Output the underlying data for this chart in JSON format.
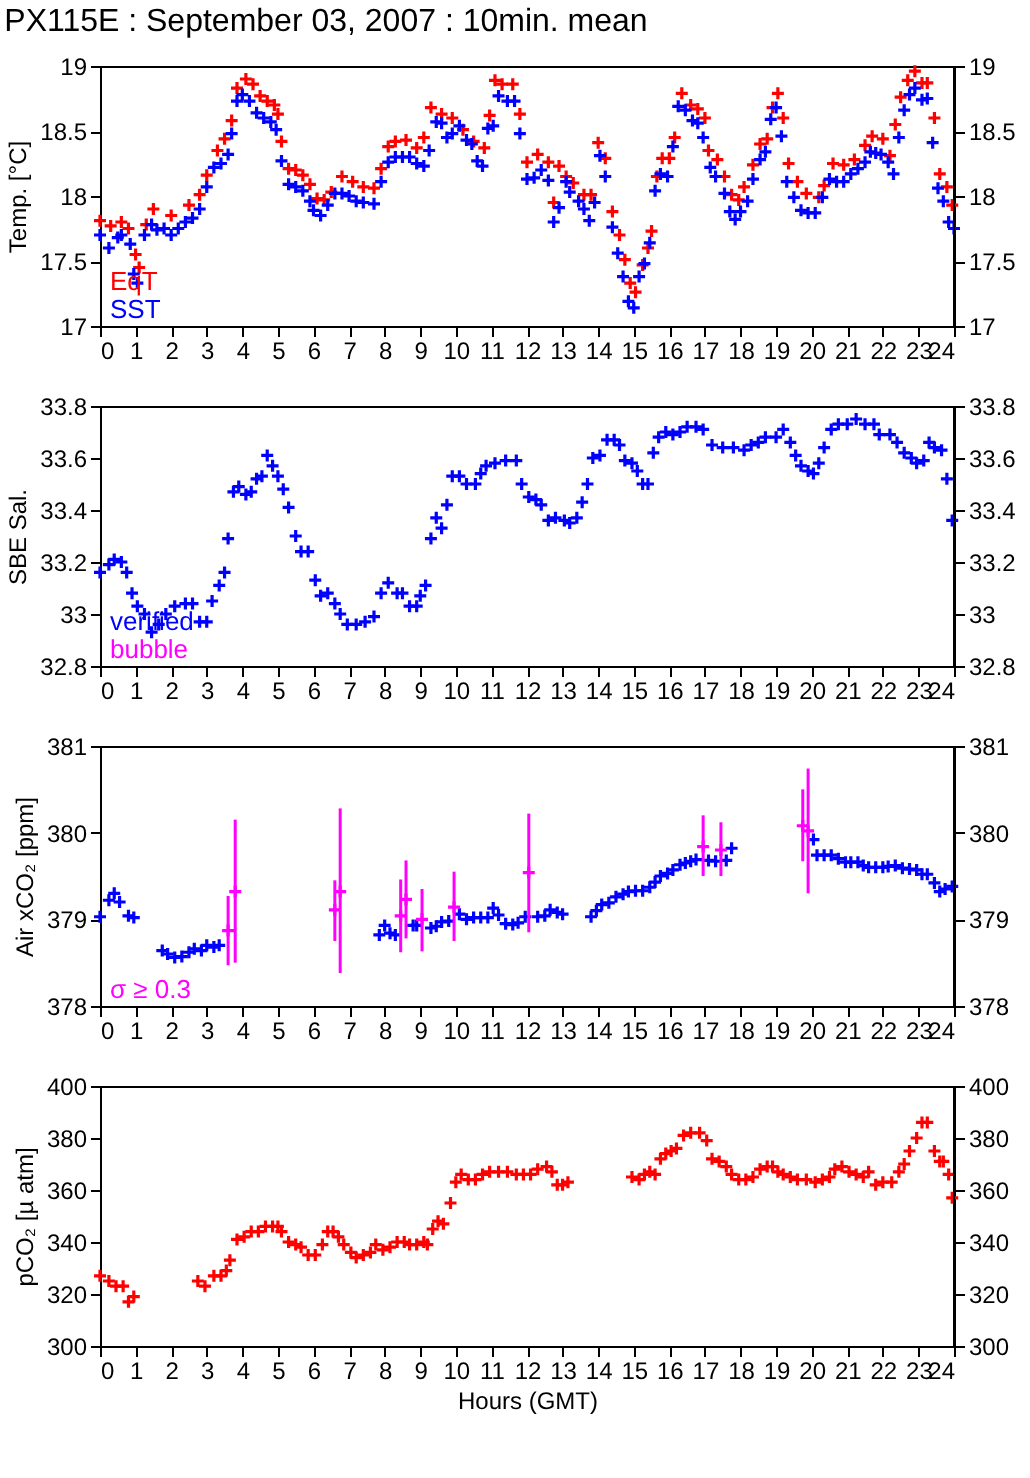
{
  "chart_data": [
    {
      "type": "scatter",
      "title": "PX115E : September 03, 2007 : 10min. mean",
      "ylabel": "Temp. [°C]",
      "xlim": [
        0,
        24
      ],
      "xticks": [
        0,
        1,
        2,
        3,
        4,
        5,
        6,
        7,
        8,
        9,
        10,
        11,
        12,
        13,
        14,
        15,
        16,
        17,
        18,
        19,
        20,
        21,
        22,
        23,
        24
      ],
      "ylim": [
        17,
        19
      ],
      "yticks": [
        17,
        17.5,
        18,
        18.5,
        19
      ],
      "y2lim": [
        17,
        19
      ],
      "y2ticks": [
        17,
        17.5,
        18,
        18.5,
        19
      ],
      "grid": false,
      "marker": "cross",
      "legend": "bottom left",
      "series": [
        {
          "name": "EqT",
          "color": "#ff0000",
          "x": [
            0,
            0.3,
            0.6,
            0.8,
            1,
            1.1,
            1.3,
            1.5,
            2,
            2.5,
            2.8,
            3,
            3.3,
            3.5,
            3.7,
            3.85,
            4.1,
            4.3,
            4.5,
            4.7,
            4.9,
            5,
            5.1,
            5.3,
            5.5,
            5.7,
            5.9,
            6.1,
            6.3,
            6.5,
            6.8,
            7.1,
            7.4,
            7.7,
            7.9,
            8.1,
            8.3,
            8.6,
            8.9,
            9.1,
            9.3,
            9.6,
            9.9,
            10.2,
            10.5,
            10.8,
            10.95,
            11.1,
            11.3,
            11.6,
            11.8,
            12,
            12.3,
            12.6,
            12.75,
            12.9,
            13.1,
            13.3,
            13.6,
            13.8,
            14,
            14.2,
            14.4,
            14.6,
            14.75,
            14.9,
            15.05,
            15.25,
            15.4,
            15.5,
            15.65,
            15.8,
            16,
            16.15,
            16.35,
            16.6,
            16.8,
            17,
            17.1,
            17.35,
            17.55,
            17.75,
            17.95,
            18.1,
            18.35,
            18.55,
            18.75,
            18.9,
            19.05,
            19.2,
            19.35,
            19.6,
            19.85,
            20.2,
            20.35,
            20.6,
            20.9,
            21.2,
            21.5,
            21.7,
            22,
            22.2,
            22.35,
            22.5,
            22.7,
            22.9,
            23.1,
            23.25,
            23.45,
            23.6,
            23.8,
            23.95
          ],
          "values": [
            17.81,
            17.77,
            17.8,
            17.75,
            17.55,
            17.45,
            17.78,
            17.9,
            17.85,
            17.93,
            18.01,
            18.16,
            18.35,
            18.44,
            18.58,
            18.83,
            18.9,
            18.86,
            18.77,
            18.73,
            18.7,
            18.63,
            18.42,
            18.21,
            18.2,
            18.16,
            18.09,
            17.98,
            17.97,
            18.03,
            18.15,
            18.11,
            18.07,
            18.06,
            18.21,
            18.38,
            18.42,
            18.43,
            18.37,
            18.45,
            18.68,
            18.63,
            18.6,
            18.51,
            18.42,
            18.37,
            18.62,
            18.89,
            18.86,
            18.86,
            18.63,
            18.26,
            18.32,
            18.26,
            17.95,
            18.23,
            18.15,
            18.1,
            18.01,
            18.01,
            18.41,
            18.29,
            17.88,
            17.7,
            17.51,
            17.33,
            17.26,
            17.47,
            17.6,
            17.73,
            18.15,
            18.29,
            18.29,
            18.45,
            18.79,
            18.7,
            18.67,
            18.6,
            18.35,
            18.28,
            18.15,
            18.01,
            17.97,
            18.07,
            18.24,
            18.4,
            18.44,
            18.68,
            18.79,
            18.6,
            18.25,
            18.11,
            18.02,
            17.99,
            18.08,
            18.25,
            18.24,
            18.28,
            18.39,
            18.46,
            18.44,
            18.31,
            18.55,
            18.76,
            18.89,
            18.96,
            18.87,
            18.87,
            18.6,
            18.17,
            18.07,
            17.93
          ]
        },
        {
          "name": "SST",
          "color": "#0000ff",
          "x": [
            0,
            0.25,
            0.5,
            0.6,
            0.85,
            0.95,
            1.05,
            1.25,
            1.45,
            1.6,
            1.8,
            2,
            2.2,
            2.4,
            2.6,
            2.8,
            3,
            3.2,
            3.4,
            3.6,
            3.7,
            3.85,
            4,
            4.2,
            4.4,
            4.6,
            4.8,
            4.95,
            5.1,
            5.3,
            5.5,
            5.7,
            5.9,
            6,
            6.2,
            6.4,
            6.6,
            6.8,
            7,
            7.2,
            7.4,
            7.7,
            7.9,
            8.1,
            8.3,
            8.5,
            8.7,
            8.9,
            9.1,
            9.25,
            9.45,
            9.6,
            9.75,
            9.9,
            10.1,
            10.3,
            10.45,
            10.6,
            10.75,
            10.9,
            11.05,
            11.2,
            11.45,
            11.65,
            11.8,
            12,
            12.2,
            12.4,
            12.6,
            12.75,
            12.9,
            13.1,
            13.2,
            13.45,
            13.6,
            13.75,
            13.9,
            14.05,
            14.2,
            14.4,
            14.55,
            14.7,
            14.85,
            15,
            15.15,
            15.3,
            15.45,
            15.6,
            15.75,
            15.95,
            16.1,
            16.25,
            16.45,
            16.65,
            16.8,
            16.95,
            17.15,
            17.3,
            17.55,
            17.7,
            17.85,
            18,
            18.2,
            18.35,
            18.55,
            18.7,
            18.85,
            19,
            19.15,
            19.3,
            19.5,
            19.7,
            19.9,
            20.1,
            20.3,
            20.5,
            20.7,
            20.9,
            21.1,
            21.3,
            21.5,
            21.65,
            21.8,
            21.95,
            22.15,
            22.3,
            22.45,
            22.6,
            22.75,
            22.9,
            23.1,
            23.25,
            23.4,
            23.55,
            23.7,
            23.85,
            24
          ],
          "values": [
            17.7,
            17.6,
            17.68,
            17.7,
            17.63,
            17.4,
            17.33,
            17.7,
            17.78,
            17.74,
            17.75,
            17.7,
            17.75,
            17.8,
            17.83,
            17.9,
            18.07,
            18.22,
            18.25,
            18.32,
            18.48,
            18.73,
            18.78,
            18.73,
            18.64,
            18.6,
            18.57,
            18.51,
            18.27,
            18.09,
            18.07,
            18.04,
            17.96,
            17.89,
            17.85,
            17.93,
            18.02,
            18.02,
            18,
            17.96,
            17.95,
            17.94,
            18.11,
            18.26,
            18.3,
            18.3,
            18.3,
            18.25,
            18.23,
            18.35,
            18.57,
            18.56,
            18.45,
            18.48,
            18.54,
            18.43,
            18.4,
            18.27,
            18.23,
            18.52,
            18.54,
            18.77,
            18.73,
            18.73,
            18.48,
            18.13,
            18.14,
            18.2,
            18.12,
            17.8,
            17.91,
            18.11,
            18.03,
            17.96,
            17.9,
            17.81,
            17.95,
            18.31,
            18.15,
            17.76,
            17.56,
            17.38,
            17.19,
            17.14,
            17.38,
            17.48,
            17.64,
            18.04,
            18.17,
            18.15,
            18.38,
            18.69,
            18.66,
            18.58,
            18.56,
            18.45,
            18.22,
            18.15,
            18.02,
            17.88,
            17.82,
            17.88,
            17.96,
            18.13,
            18.28,
            18.34,
            18.59,
            18.68,
            18.46,
            18.11,
            17.99,
            17.89,
            17.87,
            17.87,
            17.99,
            18.13,
            18.11,
            18.11,
            18.17,
            18.21,
            18.26,
            18.34,
            18.33,
            18.32,
            18.26,
            18.17,
            18.45,
            18.66,
            18.78,
            18.83,
            18.74,
            18.75,
            18.41,
            18.06,
            17.96,
            17.8,
            17.75
          ]
        }
      ]
    },
    {
      "type": "scatter",
      "ylabel": "SBE Sal.",
      "xlim": [
        0,
        24
      ],
      "xticks": [
        0,
        1,
        2,
        3,
        4,
        5,
        6,
        7,
        8,
        9,
        10,
        11,
        12,
        13,
        14,
        15,
        16,
        17,
        18,
        19,
        20,
        21,
        22,
        23,
        24
      ],
      "ylim": [
        32.8,
        33.8
      ],
      "yticks": [
        32.8,
        33,
        33.2,
        33.4,
        33.6,
        33.8
      ],
      "y2lim": [
        32.8,
        33.8
      ],
      "y2ticks": [
        32.8,
        33,
        33.2,
        33.4,
        33.6,
        33.8
      ],
      "grid": false,
      "marker": "cross",
      "legend": "bottom left",
      "series": [
        {
          "name": "verified",
          "color": "#0000ff",
          "x": [
            0,
            0.25,
            0.4,
            0.6,
            0.75,
            0.9,
            1.05,
            1.25,
            1.45,
            1.65,
            1.85,
            2.1,
            2.4,
            2.6,
            2.8,
            3,
            3.15,
            3.35,
            3.5,
            3.6,
            3.75,
            3.9,
            4.1,
            4.25,
            4.4,
            4.55,
            4.7,
            4.85,
            5,
            5.15,
            5.3,
            5.5,
            5.65,
            5.85,
            6.05,
            6.2,
            6.4,
            6.6,
            6.75,
            6.95,
            7.2,
            7.45,
            7.7,
            7.9,
            8.1,
            8.35,
            8.5,
            8.7,
            8.9,
            9,
            9.15,
            9.3,
            9.45,
            9.6,
            9.75,
            9.9,
            10.1,
            10.3,
            10.55,
            10.7,
            10.85,
            11.1,
            11.4,
            11.7,
            11.85,
            12.05,
            12.25,
            12.4,
            12.6,
            12.8,
            13.05,
            13.2,
            13.4,
            13.55,
            13.7,
            13.85,
            14.05,
            14.25,
            14.45,
            14.6,
            14.75,
            14.95,
            15.1,
            15.25,
            15.4,
            15.55,
            15.7,
            15.9,
            16.1,
            16.3,
            16.5,
            16.75,
            16.95,
            17.2,
            17.5,
            17.8,
            18.1,
            18.3,
            18.5,
            18.7,
            19,
            19.2,
            19.4,
            19.55,
            19.7,
            19.9,
            20.05,
            20.2,
            20.35,
            20.55,
            20.75,
            21,
            21.25,
            21.5,
            21.75,
            21.9,
            22.2,
            22.4,
            22.6,
            22.8,
            22.95,
            23.15,
            23.3,
            23.45,
            23.65,
            23.8,
            23.95
          ],
          "values": [
            33.16,
            33.19,
            33.21,
            33.2,
            33.16,
            33.08,
            33.03,
            33,
            32.93,
            32.96,
            33,
            33.03,
            33.04,
            33.04,
            32.97,
            32.97,
            33.05,
            33.11,
            33.16,
            33.29,
            33.47,
            33.49,
            33.46,
            33.47,
            33.52,
            33.53,
            33.61,
            33.57,
            33.53,
            33.48,
            33.41,
            33.3,
            33.24,
            33.24,
            33.13,
            33.07,
            33.08,
            33.04,
            33,
            32.96,
            32.96,
            32.97,
            32.99,
            33.08,
            33.12,
            33.08,
            33.08,
            33.03,
            33.03,
            33.07,
            33.11,
            33.29,
            33.37,
            33.33,
            33.42,
            33.53,
            33.53,
            33.5,
            33.5,
            33.54,
            33.57,
            33.58,
            33.59,
            33.59,
            33.5,
            33.45,
            33.44,
            33.42,
            33.36,
            33.37,
            33.36,
            33.35,
            33.37,
            33.43,
            33.5,
            33.6,
            33.61,
            33.67,
            33.67,
            33.65,
            33.59,
            33.58,
            33.55,
            33.5,
            33.5,
            33.62,
            33.68,
            33.7,
            33.69,
            33.7,
            33.72,
            33.72,
            33.71,
            33.65,
            33.64,
            33.64,
            33.63,
            33.65,
            33.66,
            33.68,
            33.68,
            33.71,
            33.66,
            33.61,
            33.57,
            33.55,
            33.54,
            33.58,
            33.64,
            33.71,
            33.73,
            33.73,
            33.75,
            33.73,
            33.73,
            33.69,
            33.69,
            33.66,
            33.62,
            33.6,
            33.58,
            33.59,
            33.66,
            33.64,
            33.63,
            33.52,
            33.36
          ]
        },
        {
          "name": "bubble",
          "color": "#ff00ff"
        }
      ]
    },
    {
      "type": "scatter",
      "ylabel": "Air xCO₂ [ppm]",
      "xlim": [
        0,
        24
      ],
      "xticks": [
        0,
        1,
        2,
        3,
        4,
        5,
        6,
        7,
        8,
        9,
        10,
        11,
        12,
        13,
        14,
        15,
        16,
        17,
        18,
        19,
        20,
        21,
        22,
        23,
        24
      ],
      "ylim": [
        378,
        381
      ],
      "yticks": [
        378,
        379,
        380,
        381
      ],
      "y2lim": [
        378,
        381
      ],
      "y2ticks": [
        378,
        379,
        380,
        381
      ],
      "grid": false,
      "marker": "cross",
      "legend": "bottom left",
      "series": [
        {
          "color": "#0000ff",
          "x": [
            0,
            0.25,
            0.4,
            0.55,
            0.8,
            0.95,
            1.75,
            1.9,
            2.1,
            2.3,
            2.5,
            2.65,
            2.85,
            3,
            3.2,
            3.35,
            7.85,
            8,
            8.15,
            8.3,
            8.8,
            8.9,
            9.3,
            9.45,
            9.6,
            9.8,
            10.1,
            10.3,
            10.5,
            10.7,
            10.9,
            11.05,
            11.2,
            11.4,
            11.6,
            11.75,
            11.95,
            12.3,
            12.5,
            12.65,
            12.85,
            13,
            13.8,
            13.95,
            14.1,
            14.3,
            14.5,
            14.7,
            14.85,
            15.05,
            15.25,
            15.45,
            15.6,
            15.75,
            15.95,
            16.1,
            16.3,
            16.45,
            16.6,
            16.75,
            17.1,
            17.3,
            17.6,
            17.75,
            20.05,
            20.15,
            20.35,
            20.55,
            20.75,
            20.95,
            21.1,
            21.3,
            21.45,
            21.6,
            21.8,
            22,
            22.15,
            22.35,
            22.55,
            22.75,
            22.95,
            23.1,
            23.25,
            23.45,
            23.6,
            23.75,
            23.95
          ],
          "values": [
            379.03,
            379.22,
            379.3,
            379.2,
            379.04,
            379.02,
            378.64,
            378.6,
            378.56,
            378.57,
            378.62,
            378.66,
            378.64,
            378.7,
            378.68,
            378.7,
            378.82,
            378.93,
            378.84,
            378.82,
            378.93,
            378.93,
            378.9,
            378.92,
            378.97,
            378.98,
            379.06,
            379,
            379.02,
            379.02,
            379.02,
            379.13,
            379.05,
            378.95,
            378.94,
            378.96,
            379.03,
            379.03,
            379.04,
            379.11,
            379.08,
            379.06,
            379.03,
            379.1,
            379.17,
            379.19,
            379.26,
            379.29,
            379.32,
            379.33,
            379.33,
            379.37,
            379.43,
            379.5,
            379.53,
            379.57,
            379.63,
            379.65,
            379.67,
            379.69,
            379.68,
            379.67,
            379.68,
            379.82,
            379.92,
            379.74,
            379.74,
            379.74,
            379.7,
            379.66,
            379.66,
            379.66,
            379.62,
            379.6,
            379.6,
            379.6,
            379.61,
            379.62,
            379.59,
            379.58,
            379.57,
            379.52,
            379.52,
            379.42,
            379.32,
            379.35,
            379.38
          ]
        },
        {
          "name": "σ ≥ 0.3",
          "color": "#ff00ff",
          "x": [
            3.6,
            3.8,
            6.6,
            6.75,
            8.45,
            8.6,
            9.05,
            9.95,
            12.05,
            16.95,
            17.45,
            19.75,
            19.9
          ],
          "values": [
            378.87,
            379.32,
            379.11,
            379.32,
            379.04,
            379.23,
            379,
            379.14,
            379.54,
            379.84,
            379.8,
            380.08,
            380.02
          ],
          "errors": [
            [
              378.47,
              379.27
            ],
            [
              378.5,
              380.15
            ],
            [
              378.75,
              379.45
            ],
            [
              378.38,
              380.28
            ],
            [
              378.62,
              379.46
            ],
            [
              378.78,
              379.68
            ],
            [
              378.63,
              379.35
            ],
            [
              378.75,
              379.55
            ],
            [
              378.85,
              380.22
            ],
            [
              379.5,
              380.2
            ],
            [
              379.5,
              380.12
            ],
            [
              379.67,
              380.5
            ],
            [
              379.3,
              380.74
            ]
          ]
        }
      ]
    },
    {
      "type": "scatter",
      "ylabel": "pCO₂ [µ atm]",
      "xlabel": "Hours (GMT)",
      "xlim": [
        0,
        24
      ],
      "xticks": [
        0,
        1,
        2,
        3,
        4,
        5,
        6,
        7,
        8,
        9,
        10,
        11,
        12,
        13,
        14,
        15,
        16,
        17,
        18,
        19,
        20,
        21,
        22,
        23,
        24
      ],
      "ylim": [
        300,
        400
      ],
      "yticks": [
        300,
        320,
        340,
        360,
        380,
        400
      ],
      "y2lim": [
        300,
        400
      ],
      "y2ticks": [
        300,
        320,
        340,
        360,
        380,
        400
      ],
      "grid": false,
      "marker": "cross",
      "legend": false,
      "series": [
        {
          "color": "#ff0000",
          "x": [
            0,
            0.25,
            0.45,
            0.65,
            0.8,
            0.95,
            2.75,
            2.95,
            3.2,
            3.4,
            3.55,
            3.65,
            3.85,
            4.05,
            4.25,
            4.45,
            4.65,
            4.85,
            5,
            5.1,
            5.3,
            5.5,
            5.65,
            5.85,
            6.05,
            6.25,
            6.4,
            6.55,
            6.7,
            6.85,
            7.05,
            7.2,
            7.4,
            7.6,
            7.75,
            7.95,
            8.15,
            8.35,
            8.55,
            8.7,
            8.9,
            9.1,
            9.2,
            9.35,
            9.5,
            9.65,
            9.85,
            10,
            10.15,
            10.35,
            10.55,
            10.75,
            10.95,
            11.2,
            11.45,
            11.7,
            11.9,
            12.1,
            12.3,
            12.55,
            12.7,
            12.85,
            13,
            13.15,
            14.95,
            15.15,
            15.3,
            15.45,
            15.6,
            15.75,
            15.9,
            16.05,
            16.2,
            16.4,
            16.6,
            16.85,
            17.05,
            17.2,
            17.4,
            17.6,
            17.75,
            17.95,
            18.15,
            18.35,
            18.55,
            18.75,
            18.9,
            19.05,
            19.2,
            19.4,
            19.6,
            19.85,
            20.1,
            20.3,
            20.5,
            20.65,
            20.85,
            21.05,
            21.25,
            21.45,
            21.6,
            21.8,
            22,
            22.25,
            22.45,
            22.6,
            22.75,
            22.95,
            23.1,
            23.25,
            23.45,
            23.6,
            23.7,
            23.85,
            23.95
          ],
          "values": [
            327,
            325,
            323,
            323,
            317,
            319,
            325,
            323,
            327,
            327,
            329,
            333,
            341,
            342,
            344,
            344,
            346,
            346,
            346,
            344,
            340,
            339,
            338,
            335,
            335,
            339,
            344,
            344,
            342,
            339,
            336,
            334,
            335,
            336,
            339,
            337,
            338,
            340,
            340,
            339,
            339,
            340,
            339,
            345,
            348,
            347,
            355,
            363,
            366,
            364,
            364,
            366,
            367,
            367,
            367,
            366,
            366,
            366,
            368,
            369,
            367,
            362,
            362,
            363,
            365,
            364,
            366,
            367,
            366,
            372,
            374,
            375,
            376,
            381,
            382,
            382,
            379,
            372,
            371,
            369,
            366,
            364,
            364,
            365,
            368,
            369,
            369,
            367,
            366,
            365,
            364,
            364,
            363,
            364,
            365,
            368,
            369,
            367,
            366,
            365,
            367,
            362,
            363,
            363,
            367,
            370,
            375,
            380,
            386,
            386,
            375,
            371,
            371,
            366,
            357
          ]
        }
      ]
    }
  ]
}
